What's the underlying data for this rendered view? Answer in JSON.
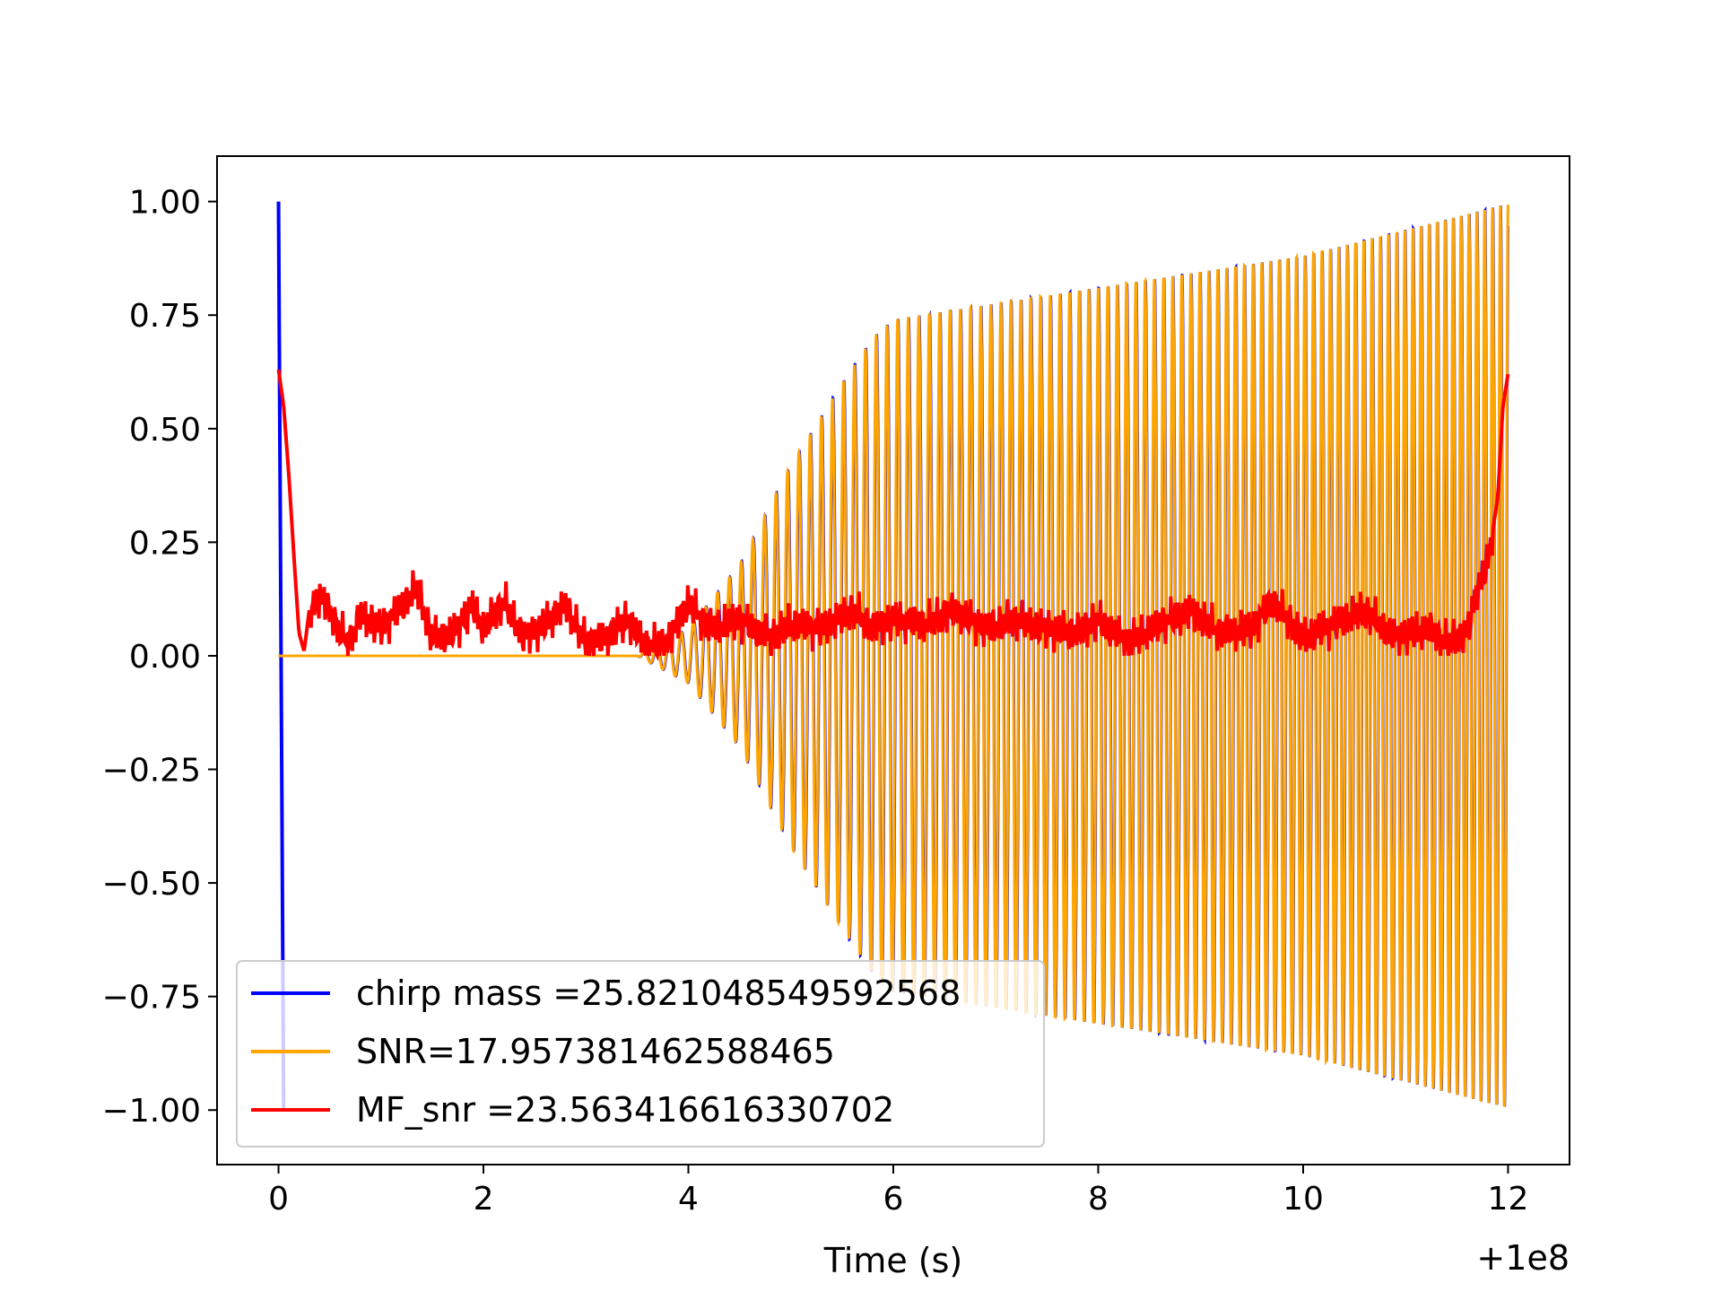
{
  "chart_data": {
    "type": "line",
    "title": "",
    "xlabel": "Time (s)",
    "ylabel": "",
    "x_offset_label": "+1e8",
    "xlim": [
      -0.6,
      12.6
    ],
    "ylim": [
      -1.12,
      1.1
    ],
    "x_ticks": [
      0,
      2,
      4,
      6,
      8,
      10,
      12
    ],
    "x_tick_labels": [
      "0",
      "2",
      "4",
      "6",
      "8",
      "10",
      "12"
    ],
    "y_ticks": [
      1.0,
      0.75,
      0.5,
      0.25,
      0.0,
      -0.25,
      -0.5,
      -0.75,
      -1.0
    ],
    "y_tick_labels": [
      "1.00",
      "0.75",
      "0.50",
      "0.25",
      "0.00",
      "−0.25",
      "−0.50",
      "−0.75",
      "−1.00"
    ],
    "grid": false,
    "legend_position": "lower-left",
    "series": [
      {
        "name": "chirp mass =25.821048549592568",
        "color": "#0000ff",
        "description_points": {
          "spike_x": 0.0,
          "spike_range": [
            -1.0,
            1.0
          ],
          "onset_x": 3.5,
          "envelope": [
            [
              3.5,
              0.0
            ],
            [
              4.0,
              0.06
            ],
            [
              4.5,
              0.2
            ],
            [
              5.0,
              0.42
            ],
            [
              5.5,
              0.6
            ],
            [
              5.8,
              0.7
            ],
            [
              6.0,
              0.74
            ],
            [
              8.0,
              0.81
            ],
            [
              10.0,
              0.88
            ],
            [
              12.0,
              0.995
            ]
          ]
        }
      },
      {
        "name": "SNR=17.957381462588465",
        "color": "#ffa500",
        "description_points": {
          "flat_until_x": 3.5,
          "envelope": [
            [
              3.5,
              0.0
            ],
            [
              4.0,
              0.06
            ],
            [
              4.5,
              0.2
            ],
            [
              5.0,
              0.42
            ],
            [
              5.5,
              0.6
            ],
            [
              5.8,
              0.7
            ],
            [
              6.0,
              0.74
            ],
            [
              8.0,
              0.81
            ],
            [
              10.0,
              0.88
            ],
            [
              12.0,
              0.995
            ]
          ]
        }
      },
      {
        "name": "MF_snr =23.563416616330702",
        "color": "#ff0000",
        "points": [
          [
            0.0,
            0.63
          ],
          [
            0.05,
            0.55
          ],
          [
            0.1,
            0.4
          ],
          [
            0.15,
            0.22
          ],
          [
            0.2,
            0.05
          ],
          [
            0.25,
            0.01
          ],
          [
            0.3,
            0.1
          ],
          [
            0.4,
            0.13
          ],
          [
            0.5,
            0.1
          ],
          [
            0.6,
            0.05
          ],
          [
            0.7,
            0.03
          ],
          [
            0.8,
            0.09
          ],
          [
            1.0,
            0.06
          ],
          [
            1.2,
            0.11
          ],
          [
            1.35,
            0.15
          ],
          [
            1.5,
            0.04
          ],
          [
            1.7,
            0.05
          ],
          [
            1.9,
            0.11
          ],
          [
            2.0,
            0.06
          ],
          [
            2.2,
            0.12
          ],
          [
            2.4,
            0.04
          ],
          [
            2.6,
            0.07
          ],
          [
            2.8,
            0.11
          ],
          [
            3.0,
            0.03
          ],
          [
            3.2,
            0.04
          ],
          [
            3.4,
            0.08
          ],
          [
            3.6,
            0.02
          ],
          [
            3.8,
            0.03
          ],
          [
            4.0,
            0.12
          ],
          [
            4.2,
            0.06
          ],
          [
            4.5,
            0.08
          ],
          [
            4.8,
            0.04
          ],
          [
            5.0,
            0.07
          ],
          [
            5.3,
            0.06
          ],
          [
            5.6,
            0.1
          ],
          [
            5.8,
            0.06
          ],
          [
            6.0,
            0.08
          ],
          [
            6.3,
            0.07
          ],
          [
            6.6,
            0.1
          ],
          [
            6.9,
            0.06
          ],
          [
            7.2,
            0.08
          ],
          [
            7.5,
            0.06
          ],
          [
            7.8,
            0.05
          ],
          [
            8.0,
            0.08
          ],
          [
            8.3,
            0.03
          ],
          [
            8.6,
            0.07
          ],
          [
            8.9,
            0.1
          ],
          [
            9.2,
            0.05
          ],
          [
            9.5,
            0.06
          ],
          [
            9.7,
            0.12
          ],
          [
            10.0,
            0.04
          ],
          [
            10.3,
            0.07
          ],
          [
            10.6,
            0.1
          ],
          [
            10.9,
            0.04
          ],
          [
            11.2,
            0.06
          ],
          [
            11.4,
            0.03
          ],
          [
            11.6,
            0.05
          ],
          [
            11.7,
            0.15
          ],
          [
            11.8,
            0.2
          ],
          [
            11.9,
            0.35
          ],
          [
            11.95,
            0.55
          ],
          [
            12.0,
            0.62
          ]
        ]
      }
    ]
  }
}
